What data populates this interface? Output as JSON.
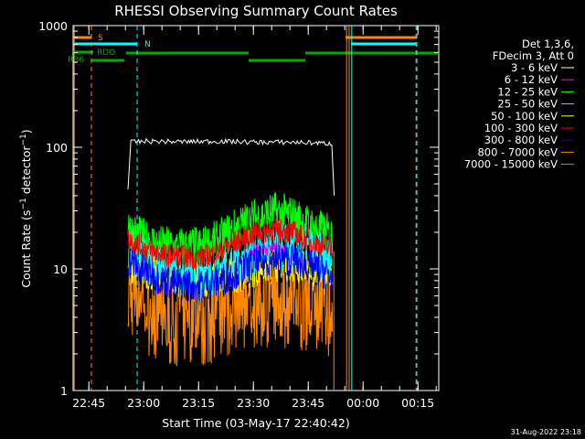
{
  "chart_data": {
    "type": "line",
    "title": "RHESSI Observing Summary Count Rates",
    "xlabel": "Start Time (03-May-17 22:40:42)",
    "ylabel": "Count Rate (s⁻¹ detector⁻¹)",
    "y_scale": "log",
    "ylim": [
      1,
      1000
    ],
    "y_ticks": [
      "1",
      "10",
      "100",
      "1000"
    ],
    "x_ticks": [
      "22:45",
      "23:00",
      "23:15",
      "23:30",
      "23:45",
      "00:00",
      "00:15"
    ],
    "x_tick_minutes": [
      4.3,
      19.3,
      34.3,
      49.3,
      64.3,
      79.3,
      94.3
    ],
    "xlim_minutes": [
      0,
      100
    ],
    "legend_header": [
      "Det 1,3,6,",
      "FDecim 3, Att 0"
    ],
    "series": [
      {
        "name": "3 - 6 keV",
        "color": "#ffffff",
        "x": [
          15,
          15.8,
          20,
          30,
          40,
          50,
          60,
          65,
          70.9,
          71.4
        ],
        "y": [
          45,
          110,
          112,
          111,
          112,
          110,
          110,
          109,
          107,
          40
        ]
      },
      {
        "name": "6 - 12 keV",
        "color": "#ff00ff",
        "x": [
          48,
          52,
          58
        ],
        "y": [
          14,
          15,
          14
        ]
      },
      {
        "name": "12 - 25 keV",
        "color": "#00ff00",
        "x": [
          15,
          17,
          20,
          25,
          30,
          35,
          40,
          45,
          50,
          55,
          60,
          65,
          70,
          71
        ],
        "y": [
          22,
          19,
          17,
          15,
          15,
          15,
          17,
          22,
          26,
          29,
          27,
          22,
          19,
          18
        ]
      },
      {
        "name": "25 - 50 keV",
        "color": "#00ffff",
        "x": [
          15,
          20,
          25,
          30,
          35,
          40,
          45,
          50,
          55,
          60,
          65,
          70,
          71
        ],
        "y": [
          15,
          12,
          10,
          9,
          9,
          10,
          12,
          14,
          16,
          15,
          14,
          12,
          12
        ]
      },
      {
        "name": "50 - 100 keV",
        "color": "#ffff00",
        "x": [
          15,
          20,
          25,
          30,
          35,
          40,
          45,
          50,
          55,
          60,
          65,
          70,
          71
        ],
        "y": [
          11,
          9.5,
          8.5,
          8.2,
          8.2,
          8.5,
          9,
          10,
          11,
          11,
          10,
          9.5,
          9
        ]
      },
      {
        "name": "100 - 300 keV",
        "color": "#ff0000",
        "x": [
          15,
          17,
          20,
          25,
          30,
          35,
          40,
          45,
          50,
          55,
          60,
          65,
          70,
          71
        ],
        "y": [
          18,
          16,
          14.5,
          13,
          12.5,
          12.5,
          14,
          17,
          20,
          21,
          20,
          17,
          15,
          14
        ]
      },
      {
        "name": "300 - 800 keV",
        "color": "#0000ff",
        "x": [
          15,
          20,
          25,
          30,
          35,
          40,
          45,
          50,
          55,
          60,
          65,
          70,
          71
        ],
        "y": [
          12,
          9.5,
          8,
          7.5,
          7.5,
          8,
          9.5,
          11,
          12,
          12,
          10.5,
          9,
          8.5
        ]
      },
      {
        "name": "800 - 7000 keV",
        "color": "#ff8800",
        "x": [
          15,
          20,
          25,
          30,
          35,
          40,
          45,
          50,
          55,
          60,
          65,
          70,
          71
        ],
        "y": [
          7,
          6,
          5,
          5,
          5,
          5.5,
          6,
          6.5,
          7,
          7,
          6.5,
          6,
          6
        ]
      },
      {
        "name": "7000 - 15000 keV",
        "color": "#a0a000",
        "x": [],
        "y": []
      }
    ],
    "flags": {
      "S": {
        "color": "#ff8800",
        "label": "S"
      },
      "N": {
        "color": "#00ffff",
        "label": "N"
      },
      "RDO": {
        "color": "#00aa00",
        "label": "RDO"
      },
      "RB6": {
        "color": "#00aa00",
        "label": "RB6"
      }
    },
    "grid": false
  },
  "footer": {
    "date": "31-Aug-2022 23:18"
  }
}
